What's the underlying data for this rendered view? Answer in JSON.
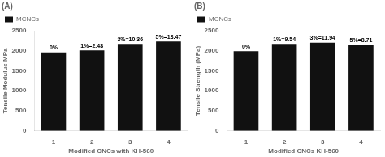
{
  "chart_data": [
    {
      "type": "bar",
      "title": "(A)",
      "categories": [
        "1",
        "2",
        "3",
        "4"
      ],
      "series": [
        {
          "name": "MCNCs",
          "color": "#111111",
          "values": [
            1960,
            2010,
            2170,
            2230
          ]
        }
      ],
      "annotations": [
        "0%",
        "1%=2.48",
        "3%=10.36",
        "5%=13.47"
      ],
      "ylabel": "Tensile Modulus MPa",
      "xlabel": "Modified CNCs with KH-560",
      "ylim": [
        0,
        2500
      ],
      "yticks": [
        0,
        500,
        1000,
        1500,
        2000,
        2500
      ],
      "grid": false,
      "legend": "upper left"
    },
    {
      "type": "bar",
      "title": "(B)",
      "categories": [
        "1",
        "2",
        "3",
        "4"
      ],
      "series": [
        {
          "name": "MCNCs",
          "color": "#111111",
          "values": [
            1990,
            2170,
            2200,
            2145
          ]
        }
      ],
      "annotations": [
        "0%",
        "1%=9.54",
        "3%=11.94",
        "5%=8.71"
      ],
      "ylabel": "Tensile Strength (MPa)",
      "xlabel": "Modified CNCs KH-560",
      "ylim": [
        0,
        2500
      ],
      "yticks": [
        0,
        500,
        1000,
        1500,
        2000,
        2500
      ],
      "grid": false,
      "legend": "upper left"
    }
  ]
}
